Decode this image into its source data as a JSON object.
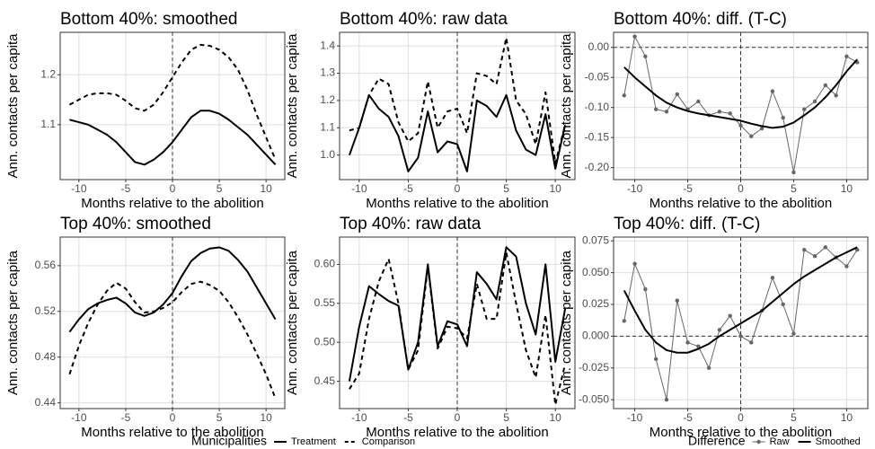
{
  "chart_data": [
    {
      "type": "line",
      "title": "Bottom 40%: smoothed",
      "xlabel": "Months relative to the abolition",
      "ylabel": "Ann. contacts per capita",
      "legend_title": "Municipalities",
      "x": [
        -11,
        -10,
        -9,
        -8,
        -7,
        -6,
        -5,
        -4,
        -3,
        -2,
        -1,
        0,
        1,
        2,
        3,
        4,
        5,
        6,
        7,
        8,
        9,
        10,
        11
      ],
      "xlim": [
        -12,
        12
      ],
      "xticks": [
        -10,
        -5,
        0,
        5,
        10
      ],
      "ylim": [
        0.99,
        1.285
      ],
      "yticks": [
        1.1,
        1.2
      ],
      "grid": true,
      "vline": 0,
      "series": [
        {
          "name": "Treatment",
          "color": "#000000",
          "dash": false,
          "values": [
            1.11,
            1.105,
            1.1,
            1.09,
            1.08,
            1.065,
            1.045,
            1.025,
            1.02,
            1.03,
            1.045,
            1.065,
            1.09,
            1.115,
            1.128,
            1.128,
            1.122,
            1.11,
            1.095,
            1.08,
            1.06,
            1.04,
            1.02
          ]
        },
        {
          "name": "Comparison",
          "color": "#000000",
          "dash": true,
          "values": [
            1.14,
            1.15,
            1.16,
            1.163,
            1.163,
            1.16,
            1.148,
            1.133,
            1.128,
            1.14,
            1.165,
            1.195,
            1.225,
            1.25,
            1.26,
            1.258,
            1.25,
            1.235,
            1.21,
            1.17,
            1.12,
            1.075,
            1.03
          ]
        }
      ]
    },
    {
      "type": "line",
      "title": "Bottom 40%: raw data",
      "xlabel": "Months relative to the abolition",
      "ylabel": "Ann. contacts per capita",
      "x": [
        -11,
        -10,
        -9,
        -8,
        -7,
        -6,
        -5,
        -4,
        -3,
        -2,
        -1,
        0,
        1,
        2,
        3,
        4,
        5,
        6,
        7,
        8,
        9,
        10,
        11
      ],
      "xlim": [
        -12,
        12
      ],
      "xticks": [
        -10,
        -5,
        0,
        5,
        10
      ],
      "ylim": [
        0.91,
        1.45
      ],
      "yticks": [
        {
          "value": 1,
          "label": "1.0"
        },
        1.1,
        1.2,
        1.3,
        1.4
      ],
      "grid": true,
      "vline": 0,
      "series": [
        {
          "name": "Treatment",
          "color": "#000000",
          "dash": false,
          "values": [
            1.0,
            1.1,
            1.22,
            1.17,
            1.14,
            1.07,
            0.94,
            0.99,
            1.16,
            1.01,
            1.05,
            1.04,
            0.94,
            1.2,
            1.18,
            1.14,
            1.22,
            1.09,
            1.02,
            1.0,
            1.15,
            0.95,
            1.11
          ]
        },
        {
          "name": "Comparison",
          "color": "#000000",
          "dash": true,
          "values": [
            1.09,
            1.1,
            1.22,
            1.28,
            1.26,
            1.12,
            1.05,
            1.08,
            1.27,
            1.1,
            1.16,
            1.17,
            1.08,
            1.3,
            1.29,
            1.26,
            1.43,
            1.2,
            1.15,
            1.04,
            1.23,
            0.97,
            1.11
          ]
        }
      ]
    },
    {
      "type": "line",
      "title": "Bottom 40%: diff. (T-C)",
      "xlabel": "Months relative to the abolition",
      "ylabel": "Ann. contacts per capita",
      "legend_title": "Difference",
      "x": [
        -11,
        -10,
        -9,
        -8,
        -7,
        -6,
        -5,
        -4,
        -3,
        -2,
        -1,
        0,
        1,
        2,
        3,
        4,
        5,
        6,
        7,
        8,
        9,
        10,
        11
      ],
      "xlim": [
        -12,
        12
      ],
      "xticks": [
        -10,
        -5,
        0,
        5,
        10
      ],
      "ylim": [
        -0.22,
        0.025
      ],
      "yticks": [
        {
          "value": 0,
          "label": "0.00"
        },
        {
          "value": -0.05,
          "label": "-0.05"
        },
        {
          "value": -0.1,
          "label": "-0.10"
        },
        {
          "value": -0.15,
          "label": "-0.15"
        },
        {
          "value": -0.2,
          "label": "-0.20"
        }
      ],
      "grid": true,
      "vline": 0,
      "hline": 0,
      "series": [
        {
          "name": "Raw",
          "color": "#666666",
          "marker": true,
          "values": [
            -0.08,
            0.018,
            -0.015,
            -0.103,
            -0.107,
            -0.078,
            -0.103,
            -0.09,
            -0.113,
            -0.107,
            -0.11,
            -0.13,
            -0.148,
            -0.135,
            -0.073,
            -0.117,
            -0.208,
            -0.103,
            -0.09,
            -0.063,
            -0.08,
            -0.015,
            -0.025
          ]
        },
        {
          "name": "Smoothed",
          "color": "#000000",
          "values": [
            -0.033,
            -0.05,
            -0.065,
            -0.08,
            -0.092,
            -0.1,
            -0.106,
            -0.11,
            -0.113,
            -0.116,
            -0.119,
            -0.122,
            -0.127,
            -0.131,
            -0.134,
            -0.132,
            -0.125,
            -0.113,
            -0.1,
            -0.083,
            -0.063,
            -0.04,
            -0.02
          ]
        }
      ]
    },
    {
      "type": "line",
      "title": "Top 40%: smoothed",
      "xlabel": "Months relative to the abolition",
      "ylabel": "Ann. contacts per capita",
      "x": [
        -11,
        -10,
        -9,
        -8,
        -7,
        -6,
        -5,
        -4,
        -3,
        -2,
        -1,
        0,
        1,
        2,
        3,
        4,
        5,
        6,
        7,
        8,
        9,
        10,
        11
      ],
      "xlim": [
        -12,
        12
      ],
      "xticks": [
        -10,
        -5,
        0,
        5,
        10
      ],
      "ylim": [
        0.435,
        0.585
      ],
      "yticks": [
        0.44,
        0.48,
        0.52,
        0.56
      ],
      "grid": true,
      "vline": 0,
      "series": [
        {
          "name": "Treatment",
          "color": "#000000",
          "dash": false,
          "values": [
            0.502,
            0.513,
            0.522,
            0.527,
            0.53,
            0.532,
            0.527,
            0.519,
            0.516,
            0.519,
            0.526,
            0.536,
            0.551,
            0.564,
            0.571,
            0.575,
            0.576,
            0.573,
            0.565,
            0.555,
            0.541,
            0.527,
            0.513
          ]
        },
        {
          "name": "Comparison",
          "color": "#000000",
          "dash": true,
          "values": [
            0.465,
            0.49,
            0.51,
            0.526,
            0.538,
            0.545,
            0.54,
            0.528,
            0.519,
            0.52,
            0.523,
            0.528,
            0.537,
            0.544,
            0.546,
            0.543,
            0.538,
            0.528,
            0.515,
            0.5,
            0.483,
            0.465,
            0.444
          ]
        }
      ]
    },
    {
      "type": "line",
      "title": "Top 40%: raw data",
      "xlabel": "Months relative to the abolition",
      "ylabel": "Ann. contacts per capita",
      "x": [
        -11,
        -10,
        -9,
        -8,
        -7,
        -6,
        -5,
        -4,
        -3,
        -2,
        -1,
        0,
        1,
        2,
        3,
        4,
        5,
        6,
        7,
        8,
        9,
        10,
        11
      ],
      "xlim": [
        -12,
        12
      ],
      "xticks": [
        -10,
        -5,
        0,
        5,
        10
      ],
      "ylim": [
        0.415,
        0.635
      ],
      "yticks": [
        0.45,
        {
          "value": 0.5,
          "label": "0.50"
        },
        0.55,
        {
          "value": 0.6,
          "label": "0.60"
        }
      ],
      "grid": true,
      "vline": 0,
      "series": [
        {
          "name": "Treatment",
          "color": "#000000",
          "dash": false,
          "values": [
            0.45,
            0.52,
            0.572,
            0.562,
            0.553,
            0.547,
            0.465,
            0.5,
            0.6,
            0.495,
            0.527,
            0.523,
            0.495,
            0.59,
            0.575,
            0.555,
            0.622,
            0.61,
            0.55,
            0.51,
            0.6,
            0.475,
            0.543
          ]
        },
        {
          "name": "Comparison",
          "color": "#000000",
          "dash": true,
          "values": [
            0.44,
            0.46,
            0.53,
            0.578,
            0.607,
            0.55,
            0.465,
            0.49,
            0.597,
            0.492,
            0.52,
            0.518,
            0.505,
            0.575,
            0.53,
            0.53,
            0.615,
            0.55,
            0.49,
            0.455,
            0.535,
            0.42,
            0.472
          ]
        }
      ]
    },
    {
      "type": "line",
      "title": "Top 40%: diff. (T-C)",
      "xlabel": "Months relative to the abolition",
      "ylabel": "Ann. contacts per capita",
      "x": [
        -11,
        -10,
        -9,
        -8,
        -7,
        -6,
        -5,
        -4,
        -3,
        -2,
        -1,
        0,
        1,
        2,
        3,
        4,
        5,
        6,
        7,
        8,
        9,
        10,
        11
      ],
      "xlim": [
        -12,
        12
      ],
      "xticks": [
        -10,
        -5,
        0,
        5,
        10
      ],
      "ylim": [
        -0.057,
        0.078
      ],
      "yticks": [
        {
          "value": 0.075,
          "label": "0.075"
        },
        {
          "value": 0.05,
          "label": "0.050"
        },
        {
          "value": 0.025,
          "label": "0.025"
        },
        {
          "value": 0,
          "label": "0.000"
        },
        {
          "value": -0.025,
          "label": "-0.025"
        },
        {
          "value": -0.05,
          "label": "-0.050"
        }
      ],
      "grid": true,
      "vline": 0,
      "hline": 0,
      "series": [
        {
          "name": "Raw",
          "color": "#666666",
          "marker": true,
          "values": [
            0.012,
            0.057,
            0.037,
            -0.018,
            -0.05,
            0.028,
            -0.005,
            -0.008,
            -0.025,
            0.005,
            0.016,
            0,
            -0.005,
            0.02,
            0.046,
            0.025,
            0.002,
            0.068,
            0.063,
            0.07,
            0.062,
            0.055,
            0.068
          ]
        },
        {
          "name": "Smoothed",
          "color": "#000000",
          "values": [
            0.036,
            0.02,
            0.005,
            -0.005,
            -0.011,
            -0.013,
            -0.013,
            -0.01,
            -0.006,
            0,
            0.005,
            0.01,
            0.015,
            0.02,
            0.027,
            0.034,
            0.041,
            0.047,
            0.052,
            0.057,
            0.062,
            0.066,
            0.07
          ]
        }
      ]
    }
  ]
}
